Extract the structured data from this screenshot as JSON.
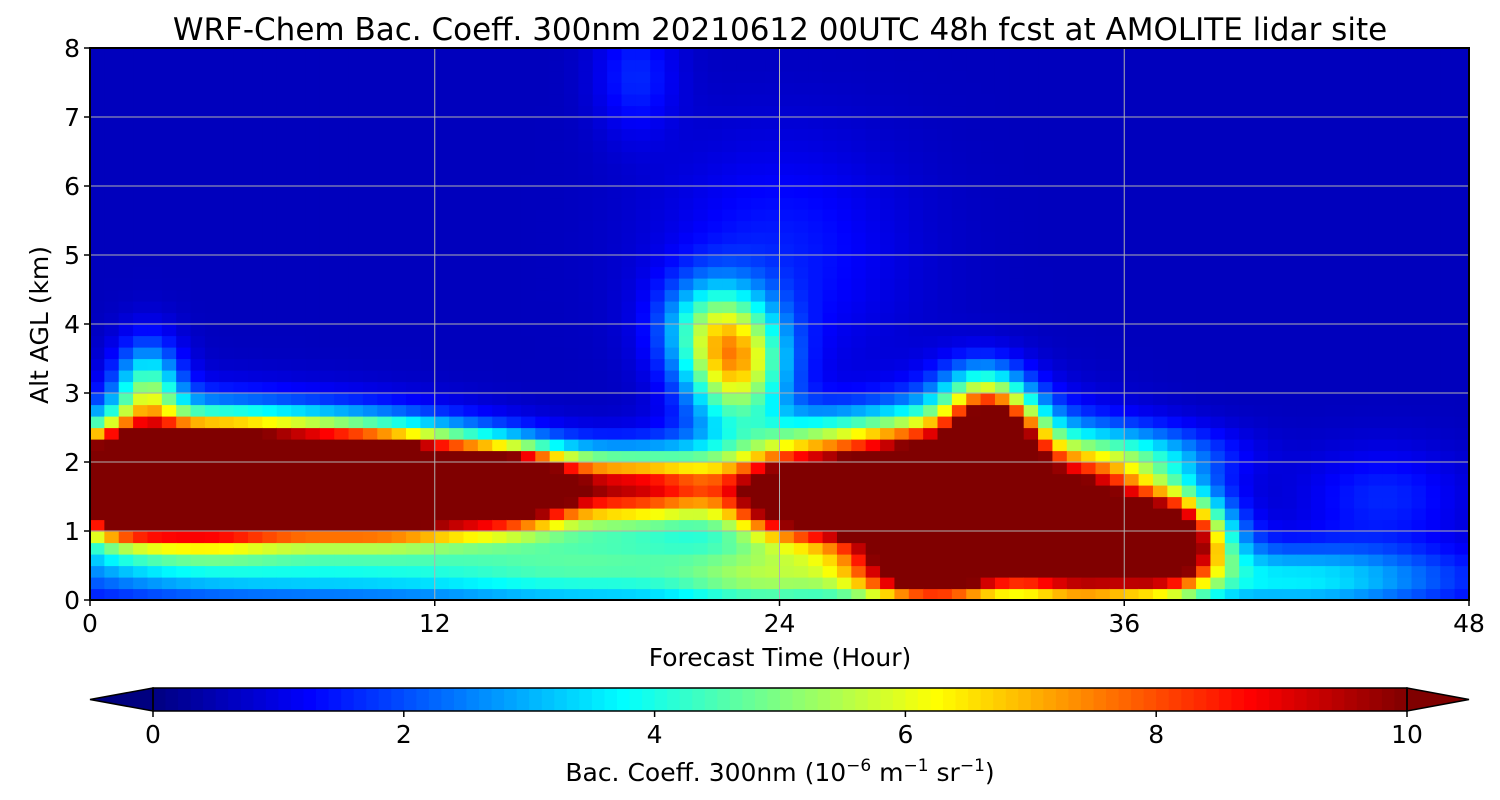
{
  "chart_data": {
    "type": "heatmap",
    "title": "WRF-Chem Bac. Coeff. 300nm  20210612 00UTC 48h fcst at AMOLITE lidar site",
    "xlabel": "Forecast Time (Hour)",
    "ylabel": "Alt AGL (km)",
    "xlim": [
      0,
      48
    ],
    "ylim": [
      0,
      8
    ],
    "xticks": [
      0,
      12,
      24,
      36,
      48
    ],
    "yticks": [
      0,
      1,
      2,
      3,
      4,
      5,
      6,
      7,
      8
    ],
    "grid": true,
    "colormap": "jet",
    "colorbar": {
      "label_main": "Bac. Coeff. 300nm  (10",
      "label_exp1": "−6",
      "label_unit1": " m",
      "label_exp2": "−1",
      "label_unit2": " sr",
      "label_exp3": "−1",
      "label_close": ")",
      "range": [
        0,
        10
      ],
      "ticks": [
        0,
        2,
        4,
        6,
        8,
        10
      ],
      "extend": "both",
      "placement": "bottom"
    },
    "background_value": 0.6,
    "features": [
      {
        "x": 1,
        "y": 1.7,
        "sx": 1.2,
        "sy": 0.45,
        "amp": 9
      },
      {
        "x": 3,
        "y": 1.7,
        "sx": 2.5,
        "sy": 0.55,
        "amp": 15
      },
      {
        "x": 7,
        "y": 1.75,
        "sx": 3.0,
        "sy": 0.5,
        "amp": 15
      },
      {
        "x": 11,
        "y": 1.65,
        "sx": 2.5,
        "sy": 0.45,
        "amp": 14
      },
      {
        "x": 14.5,
        "y": 1.65,
        "sx": 1.5,
        "sy": 0.35,
        "amp": 10
      },
      {
        "x": 19,
        "y": 1.65,
        "sx": 3.0,
        "sy": 0.35,
        "amp": 8
      },
      {
        "x": 24.5,
        "y": 1.5,
        "sx": 1.5,
        "sy": 0.4,
        "amp": 10
      },
      {
        "x": 27.5,
        "y": 1.45,
        "sx": 1.8,
        "sy": 0.45,
        "amp": 12
      },
      {
        "x": 30.5,
        "y": 1.4,
        "sx": 2.0,
        "sy": 0.75,
        "amp": 14
      },
      {
        "x": 31.5,
        "y": 2.25,
        "sx": 1.0,
        "sy": 0.45,
        "amp": 10
      },
      {
        "x": 34.5,
        "y": 1.0,
        "sx": 1.8,
        "sy": 0.7,
        "amp": 13
      },
      {
        "x": 37.5,
        "y": 0.85,
        "sx": 1.3,
        "sy": 0.45,
        "amp": 12
      },
      {
        "x": 29,
        "y": 0.4,
        "sx": 1.8,
        "sy": 0.35,
        "amp": 7
      },
      {
        "x": 2,
        "y": 3.0,
        "sx": 0.8,
        "sy": 0.5,
        "amp": 4
      },
      {
        "x": 22.5,
        "y": 3.4,
        "sx": 1.2,
        "sy": 0.6,
        "amp": 5.5
      },
      {
        "x": 21.5,
        "y": 4.0,
        "sx": 1.2,
        "sy": 0.5,
        "amp": 2.5
      },
      {
        "x": 26.5,
        "y": 2.3,
        "sx": 3.0,
        "sy": 0.35,
        "amp": 3.5
      },
      {
        "x": 31,
        "y": 3.0,
        "sx": 1.0,
        "sy": 0.35,
        "amp": 2.5
      },
      {
        "x": 8,
        "y": 0.4,
        "sx": 7.0,
        "sy": 0.35,
        "amp": 2.5
      },
      {
        "x": 18,
        "y": 0.6,
        "sx": 4.0,
        "sy": 0.55,
        "amp": 3.0
      },
      {
        "x": 24,
        "y": 0.3,
        "sx": 2.5,
        "sy": 0.4,
        "amp": 3.5
      },
      {
        "x": 42,
        "y": 0.3,
        "sx": 4.0,
        "sy": 0.35,
        "amp": 3.0
      },
      {
        "x": 37,
        "y": 2.1,
        "sx": 2.0,
        "sy": 0.3,
        "amp": 2.0
      },
      {
        "x": 19,
        "y": 7.6,
        "sx": 1.0,
        "sy": 0.6,
        "amp": 1.0
      },
      {
        "x": 24,
        "y": 5.0,
        "sx": 3.0,
        "sy": 1.2,
        "amp": 0.9
      },
      {
        "x": 45,
        "y": 1.5,
        "sx": 2.0,
        "sy": 0.5,
        "amp": 1.0
      }
    ]
  }
}
